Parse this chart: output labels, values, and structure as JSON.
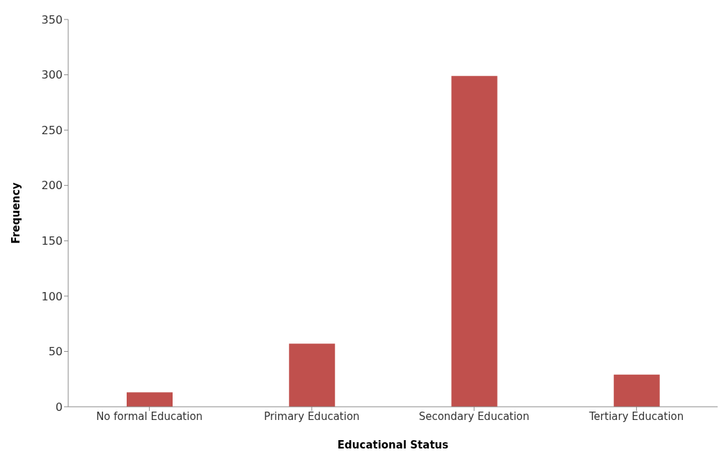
{
  "chart_data": {
    "type": "bar",
    "xlabel": "Educational Status",
    "ylabel": "Frequency",
    "categories": [
      "No formal Education",
      "Primary Education",
      "Secondary Education",
      "Tertiary Education"
    ],
    "values": [
      13,
      57,
      299,
      29
    ],
    "color": "#c0504d",
    "ylim": [
      0,
      350
    ],
    "yticks": [
      0,
      50,
      100,
      150,
      200,
      250,
      300,
      350
    ],
    "grid": false,
    "legend": false
  }
}
